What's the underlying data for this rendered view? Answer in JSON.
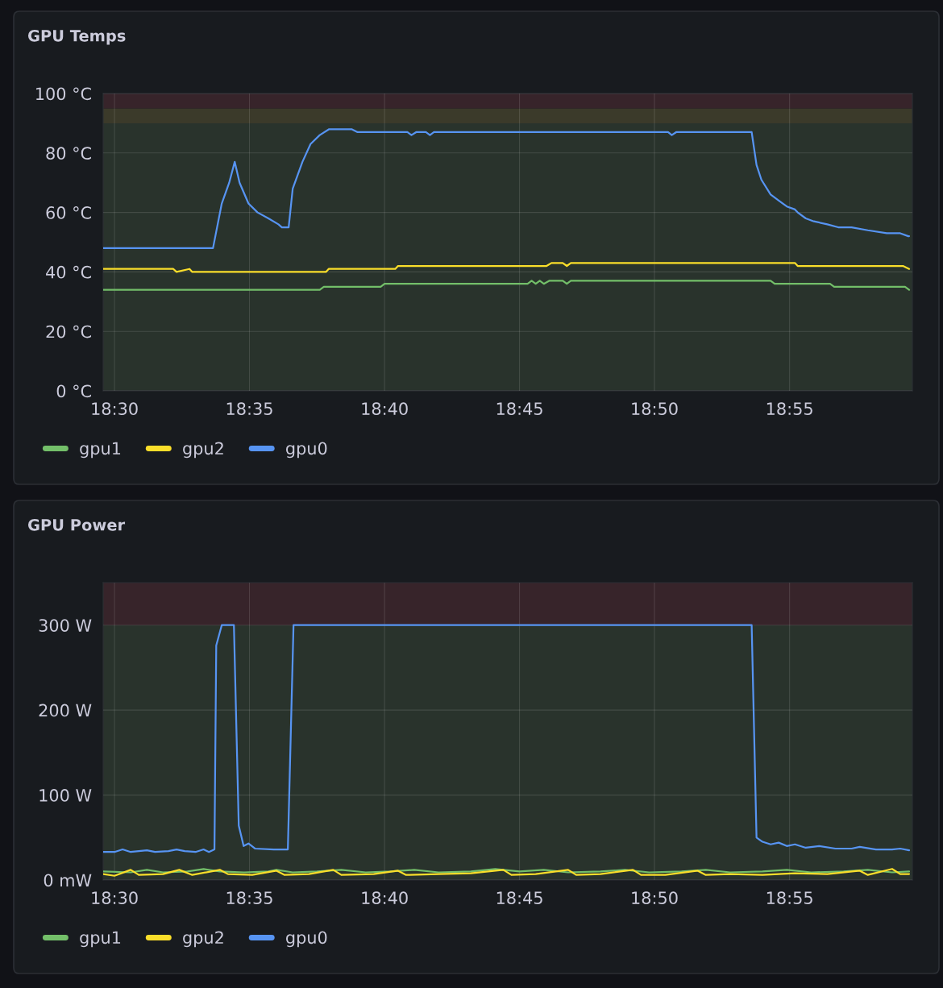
{
  "chart_data": [
    {
      "type": "line",
      "title": "GPU Temps",
      "xlim": [
        18.493,
        18.9925
      ],
      "xticks": [
        {
          "value": 18.5,
          "label": "18:30"
        },
        {
          "value": 18.5833,
          "label": "18:35"
        },
        {
          "value": 18.6667,
          "label": "18:40"
        },
        {
          "value": 18.75,
          "label": "18:45"
        },
        {
          "value": 18.8333,
          "label": "18:50"
        },
        {
          "value": 18.9167,
          "label": "18:55"
        }
      ],
      "ylim": [
        0,
        100
      ],
      "yticks": [
        {
          "value": 0,
          "label": "0 °C"
        },
        {
          "value": 20,
          "label": "20 °C"
        },
        {
          "value": 40,
          "label": "40 °C"
        },
        {
          "value": 60,
          "label": "60 °C"
        },
        {
          "value": 80,
          "label": "80 °C"
        },
        {
          "value": 100,
          "label": "100 °C"
        }
      ],
      "grid": true,
      "legend": "bottom",
      "bands": [
        {
          "axis": "y",
          "from": 0,
          "to": 90,
          "color": "#29332c"
        },
        {
          "axis": "y",
          "from": 90,
          "to": 95,
          "color": "#3b3a2a"
        },
        {
          "axis": "y",
          "from": 95,
          "to": 100,
          "color": "#37242a"
        }
      ],
      "series": [
        {
          "name": "gpu1",
          "color": "#73bf69",
          "x": [
            18.493,
            18.6267,
            18.6292,
            18.6643,
            18.6667,
            18.755,
            18.7575,
            18.76,
            18.7625,
            18.765,
            18.7683,
            18.7767,
            18.7792,
            18.7817,
            18.905,
            18.9075,
            18.9417,
            18.9442,
            18.988,
            18.9905
          ],
          "values": [
            34,
            34,
            35,
            35,
            36,
            36,
            37,
            36,
            37,
            36,
            37,
            37,
            36,
            37,
            37,
            36,
            36,
            35,
            35,
            34
          ]
        },
        {
          "name": "gpu2",
          "color": "#fade2a",
          "x": [
            18.493,
            18.5363,
            18.5383,
            18.5463,
            18.548,
            18.6305,
            18.6322,
            18.6733,
            18.675,
            18.7667,
            18.7697,
            18.7767,
            18.7792,
            18.7817,
            18.92,
            18.9217,
            18.9867,
            18.9905
          ],
          "values": [
            41,
            41,
            40,
            41,
            40,
            40,
            41,
            41,
            42,
            42,
            43,
            43,
            42,
            43,
            43,
            42,
            42,
            41
          ]
        },
        {
          "name": "gpu0",
          "color": "#5794f2",
          "x": [
            18.493,
            18.5608,
            18.5662,
            18.5708,
            18.5742,
            18.5772,
            18.5827,
            18.5883,
            18.595,
            18.6012,
            18.6033,
            18.6075,
            18.61,
            18.616,
            18.621,
            18.6267,
            18.6325,
            18.6463,
            18.65,
            18.6808,
            18.6833,
            18.6862,
            18.6922,
            18.6947,
            18.6972,
            18.8417,
            18.844,
            18.8467,
            18.8933,
            18.8963,
            18.8993,
            18.905,
            18.91,
            18.915,
            18.92,
            18.9217,
            18.9267,
            18.9317,
            18.94,
            18.9467,
            18.955,
            18.965,
            18.9767,
            18.985,
            18.99,
            18.9905
          ],
          "values": [
            48,
            48,
            63,
            70,
            77,
            70,
            63,
            60,
            58,
            56,
            55,
            55,
            68,
            77,
            83,
            86,
            88,
            88,
            87,
            87,
            86,
            87,
            87,
            86,
            87,
            87,
            86,
            87,
            87,
            76,
            71,
            66,
            64,
            62,
            61,
            60,
            58,
            57,
            56,
            55,
            55,
            54,
            53,
            53,
            52,
            52
          ]
        }
      ]
    },
    {
      "type": "line",
      "title": "GPU Power",
      "xlim": [
        18.493,
        18.9925
      ],
      "xticks": [
        {
          "value": 18.5,
          "label": "18:30"
        },
        {
          "value": 18.5833,
          "label": "18:35"
        },
        {
          "value": 18.6667,
          "label": "18:40"
        },
        {
          "value": 18.75,
          "label": "18:45"
        },
        {
          "value": 18.8333,
          "label": "18:50"
        },
        {
          "value": 18.9167,
          "label": "18:55"
        }
      ],
      "ylim": [
        0,
        350
      ],
      "yticks": [
        {
          "value": 0,
          "label": "0 mW"
        },
        {
          "value": 100,
          "label": "100 W"
        },
        {
          "value": 200,
          "label": "200 W"
        },
        {
          "value": 300,
          "label": "300 W"
        }
      ],
      "grid": true,
      "legend": "bottom",
      "bands": [
        {
          "axis": "y",
          "from": 0,
          "to": 300,
          "color": "#29332c"
        },
        {
          "axis": "y",
          "from": 300,
          "to": 350,
          "color": "#37242a"
        }
      ],
      "series": [
        {
          "name": "gpu1",
          "color": "#73bf69",
          "x": [
            18.493,
            18.51,
            18.52,
            18.53,
            18.545,
            18.555,
            18.565,
            18.58,
            18.595,
            18.6,
            18.61,
            18.625,
            18.64,
            18.655,
            18.67,
            18.685,
            18.7,
            18.72,
            18.735,
            18.75,
            18.765,
            18.78,
            18.8,
            18.815,
            18.83,
            18.85,
            18.865,
            18.88,
            18.9,
            18.915,
            18.93,
            18.95,
            18.965,
            18.98,
            18.9905
          ],
          "values": [
            10,
            9,
            12,
            9,
            10,
            13,
            10,
            9,
            10,
            12,
            9,
            10,
            12,
            9,
            10,
            12,
            9,
            10,
            13,
            10,
            12,
            9,
            10,
            12,
            9,
            10,
            12,
            9,
            10,
            12,
            9,
            10,
            12,
            9,
            10
          ]
        },
        {
          "name": "gpu2",
          "color": "#fade2a",
          "x": [
            18.493,
            18.5,
            18.51,
            18.515,
            18.53,
            18.54,
            18.548,
            18.565,
            18.57,
            18.585,
            18.6,
            18.605,
            18.62,
            18.635,
            18.64,
            18.66,
            18.675,
            18.68,
            18.7,
            18.72,
            18.74,
            18.745,
            18.76,
            18.78,
            18.785,
            18.8,
            18.82,
            18.825,
            18.84,
            18.86,
            18.865,
            18.88,
            18.9,
            18.92,
            18.94,
            18.96,
            18.965,
            18.98,
            18.985,
            18.9905
          ],
          "values": [
            7,
            5,
            12,
            6,
            7,
            12,
            6,
            12,
            7,
            6,
            11,
            6,
            7,
            12,
            6,
            7,
            11,
            6,
            7,
            8,
            12,
            6,
            7,
            12,
            6,
            7,
            12,
            6,
            6,
            11,
            6,
            7,
            6,
            8,
            7,
            11,
            6,
            13,
            7,
            7
          ]
        },
        {
          "name": "gpu0",
          "color": "#5794f2",
          "x": [
            18.493,
            18.5,
            18.505,
            18.51,
            18.52,
            18.525,
            18.5333,
            18.5383,
            18.5433,
            18.55,
            18.555,
            18.5583,
            18.5617,
            18.5628,
            18.5662,
            18.5737,
            18.5767,
            18.5797,
            18.5827,
            18.5867,
            18.5983,
            18.607,
            18.6105,
            18.8933,
            18.8963,
            18.9,
            18.905,
            18.91,
            18.915,
            18.92,
            18.9267,
            18.935,
            18.945,
            18.955,
            18.96,
            18.97,
            18.98,
            18.985,
            18.9905
          ],
          "values": [
            33,
            33,
            36,
            33,
            35,
            33,
            34,
            36,
            34,
            33,
            36,
            33,
            36,
            276,
            300,
            300,
            64,
            40,
            43,
            37,
            36,
            36,
            300,
            300,
            50,
            45,
            42,
            44,
            40,
            42,
            38,
            40,
            37,
            37,
            39,
            36,
            36,
            37,
            35
          ]
        }
      ]
    }
  ]
}
